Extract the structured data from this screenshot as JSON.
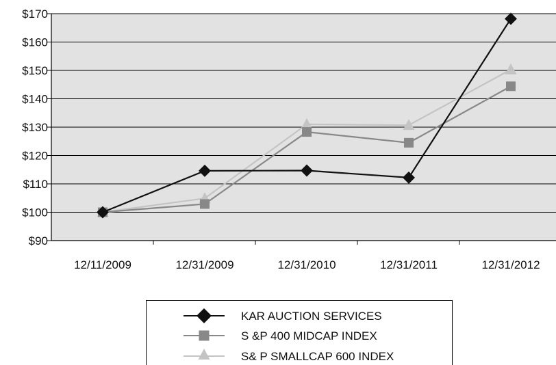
{
  "chart_data": {
    "type": "line",
    "title": "",
    "xlabel": "",
    "ylabel": "",
    "categories": [
      "12/11/2009",
      "12/31/2009",
      "12/31/2010",
      "12/31/2011",
      "12/31/2012"
    ],
    "ylim": [
      90,
      170
    ],
    "yticks": [
      90,
      100,
      110,
      120,
      130,
      140,
      150,
      160,
      170
    ],
    "ytick_labels": [
      "$90",
      "$100",
      "$110",
      "$120",
      "$130",
      "$140",
      "$150",
      "$160",
      "$170"
    ],
    "grid": "horizontal",
    "plot_background": "#e2e2e2",
    "legend_placement": "bottom-center",
    "series": [
      {
        "name": "KAR AUCTION SERVICES",
        "values": [
          100,
          114.6,
          114.7,
          112.2,
          168.2
        ],
        "color": "#111111",
        "marker": "diamond"
      },
      {
        "name": "S &P 400 MIDCAP INDEX",
        "values": [
          100,
          102.9,
          128.3,
          124.5,
          144.4
        ],
        "color": "#888888",
        "marker": "square"
      },
      {
        "name": "S& P SMALLCAP 600 INDEX",
        "values": [
          100,
          104.9,
          131.0,
          130.7,
          150.3
        ],
        "color": "#c4c4c4",
        "marker": "triangle"
      }
    ]
  }
}
